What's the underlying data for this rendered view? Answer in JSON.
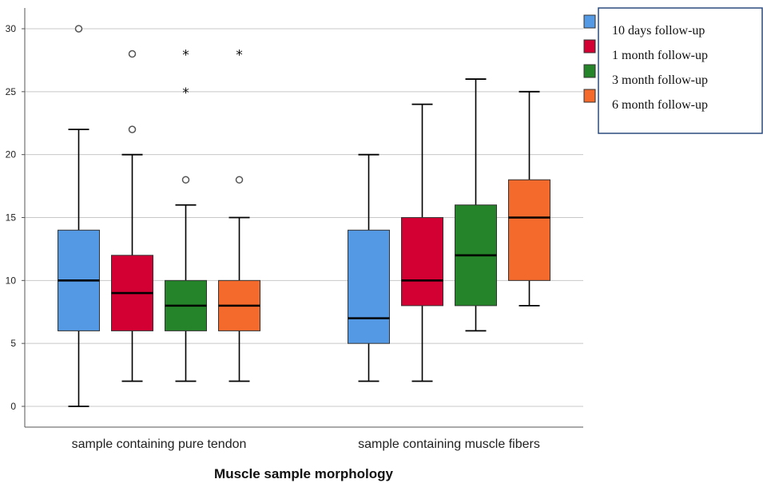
{
  "chart_data": {
    "type": "boxplot",
    "title": "",
    "xlabel": "Muscle sample morphology",
    "ylabel": "",
    "ylim": [
      -1.6,
      32.2
    ],
    "yticks": [
      0,
      5,
      10,
      15,
      20,
      25,
      30
    ],
    "grid": true,
    "legend_position": "top-right",
    "categories": [
      "sample containing pure tendon",
      "sample containing muscle fibers"
    ],
    "series": [
      {
        "name": "10 days follow-up",
        "color": "#5499e4",
        "boxes": [
          {
            "min": 0,
            "q1": 6,
            "median": 10,
            "q3": 14,
            "max": 22,
            "outliers": [
              30
            ],
            "extremes": []
          },
          {
            "min": 2,
            "q1": 5,
            "median": 7,
            "q3": 14,
            "max": 20,
            "outliers": [],
            "extremes": []
          }
        ]
      },
      {
        "name": "1 month follow-up",
        "color": "#d30033",
        "boxes": [
          {
            "min": 2,
            "q1": 6,
            "median": 9,
            "q3": 12,
            "max": 20,
            "outliers": [
              22,
              28
            ],
            "extremes": []
          },
          {
            "min": 2,
            "q1": 8,
            "median": 10,
            "q3": 15,
            "max": 24,
            "outliers": [],
            "extremes": []
          }
        ]
      },
      {
        "name": "3 month follow-up",
        "color": "#258429",
        "boxes": [
          {
            "min": 2,
            "q1": 6,
            "median": 8,
            "q3": 10,
            "max": 16,
            "outliers": [
              18
            ],
            "extremes": [
              25,
              28
            ]
          },
          {
            "min": 6,
            "q1": 8,
            "median": 12,
            "q3": 16,
            "max": 26,
            "outliers": [],
            "extremes": []
          }
        ]
      },
      {
        "name": "6 month follow-up",
        "color": "#f36a2c",
        "boxes": [
          {
            "min": 2,
            "q1": 6,
            "median": 8,
            "q3": 10,
            "max": 15,
            "outliers": [
              18
            ],
            "extremes": [
              28
            ]
          },
          {
            "min": 8,
            "q1": 10,
            "median": 15,
            "q3": 18,
            "max": 25,
            "outliers": [],
            "extremes": []
          }
        ]
      }
    ]
  }
}
